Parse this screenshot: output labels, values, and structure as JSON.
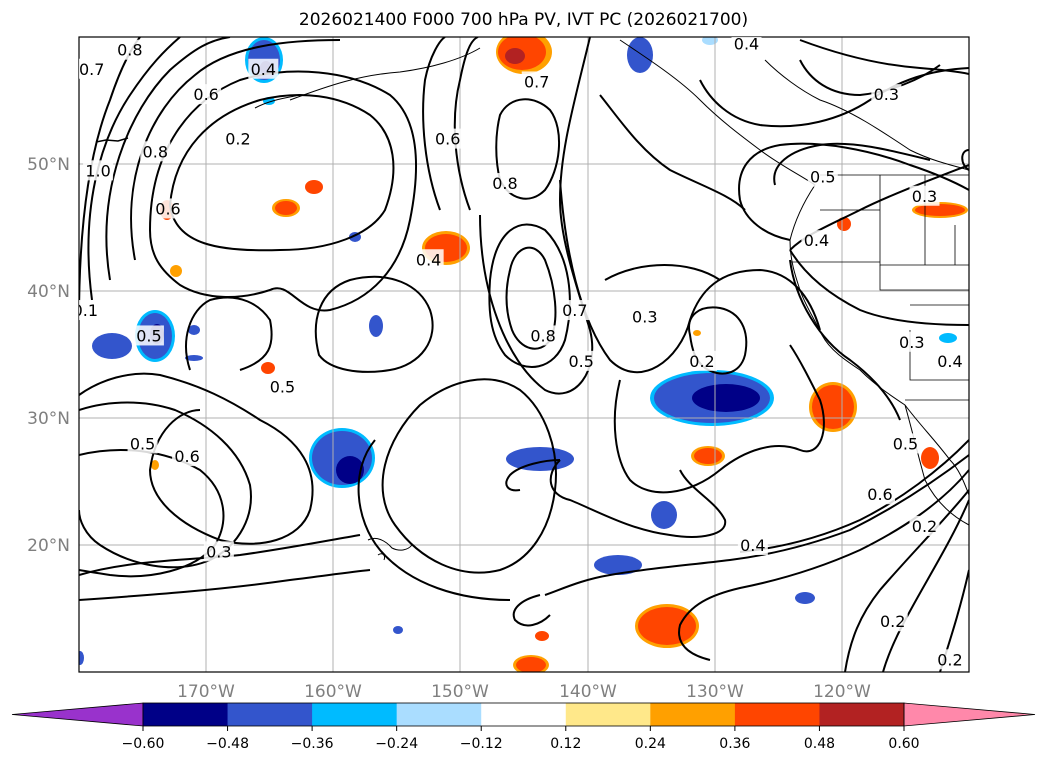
{
  "title": "2026021400 F000 700 hPa PV, IVT PC (2026021700)",
  "map": {
    "lon_range": [
      -180,
      -110
    ],
    "lat_range": [
      10,
      60
    ],
    "grid_lines": true,
    "lat_labels": [
      "20°N",
      "30°N",
      "40°N",
      "50°N"
    ],
    "lon_labels": [
      "170°W",
      "160°W",
      "150°W",
      "140°W",
      "130°W",
      "120°W"
    ]
  },
  "contour_labels": [
    {
      "text": "0.8",
      "lon": -176,
      "lat": 59
    },
    {
      "text": "0.7",
      "lon": -179,
      "lat": 57.5
    },
    {
      "text": "0.6",
      "lon": -170,
      "lat": 55.5
    },
    {
      "text": "0.4",
      "lon": -165.5,
      "lat": 57.5
    },
    {
      "text": "0.2",
      "lon": -167.5,
      "lat": 52
    },
    {
      "text": "0.8",
      "lon": -174,
      "lat": 51
    },
    {
      "text": "1.0",
      "lon": -178.5,
      "lat": 49.5
    },
    {
      "text": "0.6",
      "lon": -173,
      "lat": 46.5
    },
    {
      "text": "0.5",
      "lon": -174.5,
      "lat": 36.5
    },
    {
      "text": "0.1",
      "lon": -179.5,
      "lat": 38.5
    },
    {
      "text": "0.6",
      "lon": -151,
      "lat": 52
    },
    {
      "text": "0.8",
      "lon": -146.5,
      "lat": 48.5
    },
    {
      "text": "0.7",
      "lon": -144,
      "lat": 56.5
    },
    {
      "text": "0.4",
      "lon": -152.5,
      "lat": 42.5
    },
    {
      "text": "0.7",
      "lon": -141,
      "lat": 38.5
    },
    {
      "text": "0.8",
      "lon": -143.5,
      "lat": 36.5
    },
    {
      "text": "0.5",
      "lon": -140.5,
      "lat": 34.5
    },
    {
      "text": "0.3",
      "lon": -135.5,
      "lat": 38
    },
    {
      "text": "0.2",
      "lon": -131,
      "lat": 34.5
    },
    {
      "text": "0.4",
      "lon": -127.5,
      "lat": 59.5
    },
    {
      "text": "0.3",
      "lon": -116.5,
      "lat": 55.5
    },
    {
      "text": "0.5",
      "lon": -121.5,
      "lat": 49
    },
    {
      "text": "0.4",
      "lon": -122,
      "lat": 44
    },
    {
      "text": "0.3",
      "lon": -113.5,
      "lat": 47.5
    },
    {
      "text": "0.3",
      "lon": -114.5,
      "lat": 36
    },
    {
      "text": "0.4",
      "lon": -111.5,
      "lat": 34.5
    },
    {
      "text": "0.5",
      "lon": -164,
      "lat": 32.5
    },
    {
      "text": "0.5",
      "lon": -175,
      "lat": 28
    },
    {
      "text": "0.6",
      "lon": -171.5,
      "lat": 27
    },
    {
      "text": "0.3",
      "lon": -169,
      "lat": 19.5
    },
    {
      "text": "0.4",
      "lon": -127,
      "lat": 20
    },
    {
      "text": "0.5",
      "lon": -115,
      "lat": 28
    },
    {
      "text": "0.6",
      "lon": -117,
      "lat": 24
    },
    {
      "text": "0.2",
      "lon": -113.5,
      "lat": 21.5
    },
    {
      "text": "0.2",
      "lon": -116,
      "lat": 14
    },
    {
      "text": "0.2",
      "lon": -111.5,
      "lat": 11
    }
  ],
  "colorbar": {
    "bounds": [
      -0.6,
      -0.48,
      -0.36,
      -0.24,
      -0.12,
      0.12,
      0.24,
      0.36,
      0.48,
      0.6
    ],
    "tick_labels": [
      "−0.60",
      "−0.48",
      "−0.36",
      "−0.24",
      "−0.12",
      "0.12",
      "0.24",
      "0.36",
      "0.48",
      "0.60"
    ],
    "colors": [
      "#000087",
      "#3355cc",
      "#00bbff",
      "#aaddff",
      "#ffffff",
      "#ffe88a",
      "#ffa000",
      "#ff4500",
      "#b22222"
    ],
    "under_color": "#9932cc",
    "over_color": "#ff88aa"
  }
}
